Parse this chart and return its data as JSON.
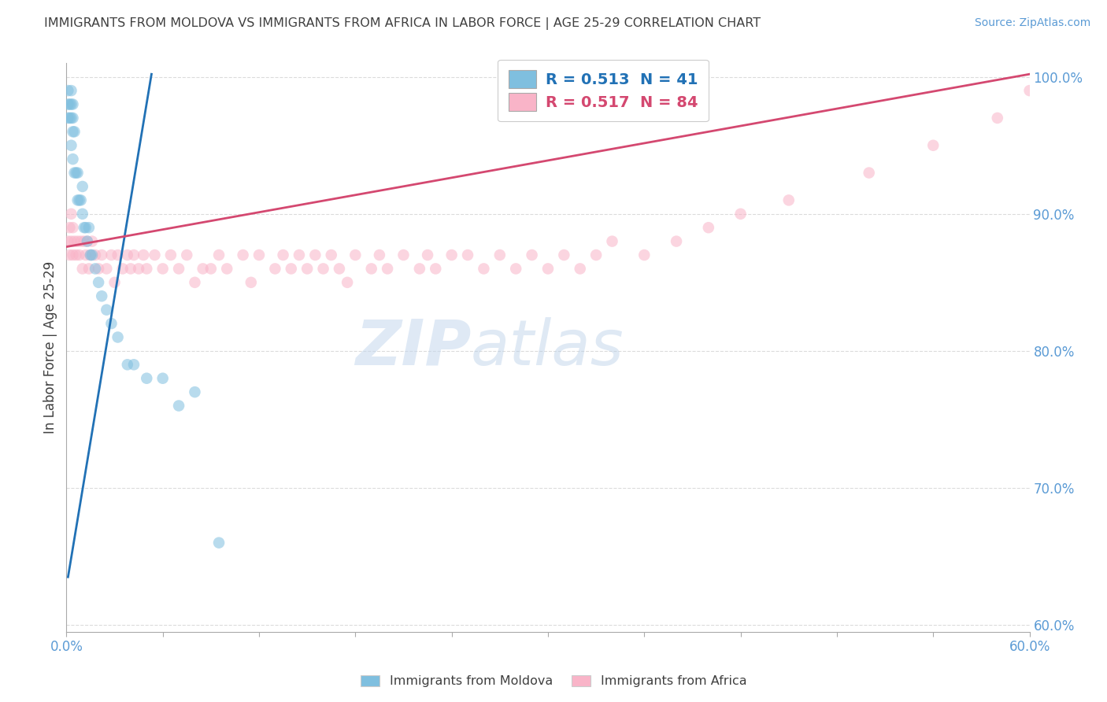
{
  "title": "IMMIGRANTS FROM MOLDOVA VS IMMIGRANTS FROM AFRICA IN LABOR FORCE | AGE 25-29 CORRELATION CHART",
  "source": "Source: ZipAtlas.com",
  "ylabel": "In Labor Force | Age 25-29",
  "xlim": [
    0.0,
    0.6
  ],
  "ylim": [
    0.595,
    1.01
  ],
  "ytick_vals": [
    0.6,
    0.7,
    0.8,
    0.9,
    1.0
  ],
  "ytick_labels": [
    "60.0%",
    "70.0%",
    "80.0%",
    "90.0%",
    "100.0%"
  ],
  "xtick_vals": [
    0.0,
    0.06,
    0.12,
    0.18,
    0.24,
    0.3,
    0.36,
    0.42,
    0.48,
    0.54,
    0.6
  ],
  "xtick_labels": [
    "0.0%",
    "",
    "",
    "",
    "",
    "",
    "",
    "",
    "",
    "",
    "60.0%"
  ],
  "moldova_color": "#7fbfdf",
  "africa_color": "#f9b4c8",
  "moldova_line_color": "#2171b5",
  "africa_line_color": "#d44870",
  "moldova_R": 0.513,
  "moldova_N": 41,
  "africa_R": 0.517,
  "africa_N": 84,
  "moldova_x": [
    0.001,
    0.001,
    0.001,
    0.002,
    0.002,
    0.003,
    0.003,
    0.003,
    0.003,
    0.004,
    0.004,
    0.004,
    0.004,
    0.005,
    0.005,
    0.006,
    0.007,
    0.007,
    0.008,
    0.009,
    0.01,
    0.01,
    0.011,
    0.012,
    0.013,
    0.014,
    0.015,
    0.016,
    0.018,
    0.02,
    0.022,
    0.025,
    0.028,
    0.032,
    0.038,
    0.042,
    0.05,
    0.06,
    0.07,
    0.08,
    0.095
  ],
  "moldova_y": [
    0.97,
    0.98,
    0.99,
    0.97,
    0.98,
    0.95,
    0.97,
    0.98,
    0.99,
    0.94,
    0.96,
    0.97,
    0.98,
    0.93,
    0.96,
    0.93,
    0.91,
    0.93,
    0.91,
    0.91,
    0.9,
    0.92,
    0.89,
    0.89,
    0.88,
    0.89,
    0.87,
    0.87,
    0.86,
    0.85,
    0.84,
    0.83,
    0.82,
    0.81,
    0.79,
    0.79,
    0.78,
    0.78,
    0.76,
    0.77,
    0.66
  ],
  "africa_x": [
    0.001,
    0.002,
    0.002,
    0.003,
    0.003,
    0.004,
    0.004,
    0.005,
    0.006,
    0.007,
    0.008,
    0.009,
    0.01,
    0.011,
    0.012,
    0.013,
    0.014,
    0.015,
    0.016,
    0.018,
    0.02,
    0.022,
    0.025,
    0.028,
    0.03,
    0.032,
    0.035,
    0.038,
    0.04,
    0.042,
    0.045,
    0.048,
    0.05,
    0.055,
    0.06,
    0.065,
    0.07,
    0.075,
    0.08,
    0.085,
    0.09,
    0.095,
    0.1,
    0.11,
    0.115,
    0.12,
    0.13,
    0.135,
    0.14,
    0.145,
    0.15,
    0.155,
    0.16,
    0.165,
    0.17,
    0.175,
    0.18,
    0.19,
    0.195,
    0.2,
    0.21,
    0.22,
    0.225,
    0.23,
    0.24,
    0.25,
    0.26,
    0.27,
    0.28,
    0.29,
    0.3,
    0.31,
    0.32,
    0.33,
    0.34,
    0.36,
    0.38,
    0.4,
    0.42,
    0.45,
    0.5,
    0.54,
    0.58,
    0.6
  ],
  "africa_y": [
    0.88,
    0.89,
    0.87,
    0.9,
    0.88,
    0.87,
    0.89,
    0.88,
    0.87,
    0.88,
    0.87,
    0.88,
    0.86,
    0.88,
    0.87,
    0.88,
    0.86,
    0.87,
    0.88,
    0.87,
    0.86,
    0.87,
    0.86,
    0.87,
    0.85,
    0.87,
    0.86,
    0.87,
    0.86,
    0.87,
    0.86,
    0.87,
    0.86,
    0.87,
    0.86,
    0.87,
    0.86,
    0.87,
    0.85,
    0.86,
    0.86,
    0.87,
    0.86,
    0.87,
    0.85,
    0.87,
    0.86,
    0.87,
    0.86,
    0.87,
    0.86,
    0.87,
    0.86,
    0.87,
    0.86,
    0.85,
    0.87,
    0.86,
    0.87,
    0.86,
    0.87,
    0.86,
    0.87,
    0.86,
    0.87,
    0.87,
    0.86,
    0.87,
    0.86,
    0.87,
    0.86,
    0.87,
    0.86,
    0.87,
    0.88,
    0.87,
    0.88,
    0.89,
    0.9,
    0.91,
    0.93,
    0.95,
    0.97,
    0.99
  ],
  "background_color": "#ffffff",
  "grid_color": "#d8d8d8",
  "tick_color": "#5b9bd5",
  "title_color": "#404040",
  "axis_label_color": "#404040",
  "watermark_zip_color": "#c8daf0",
  "watermark_atlas_color": "#b0c8e8"
}
